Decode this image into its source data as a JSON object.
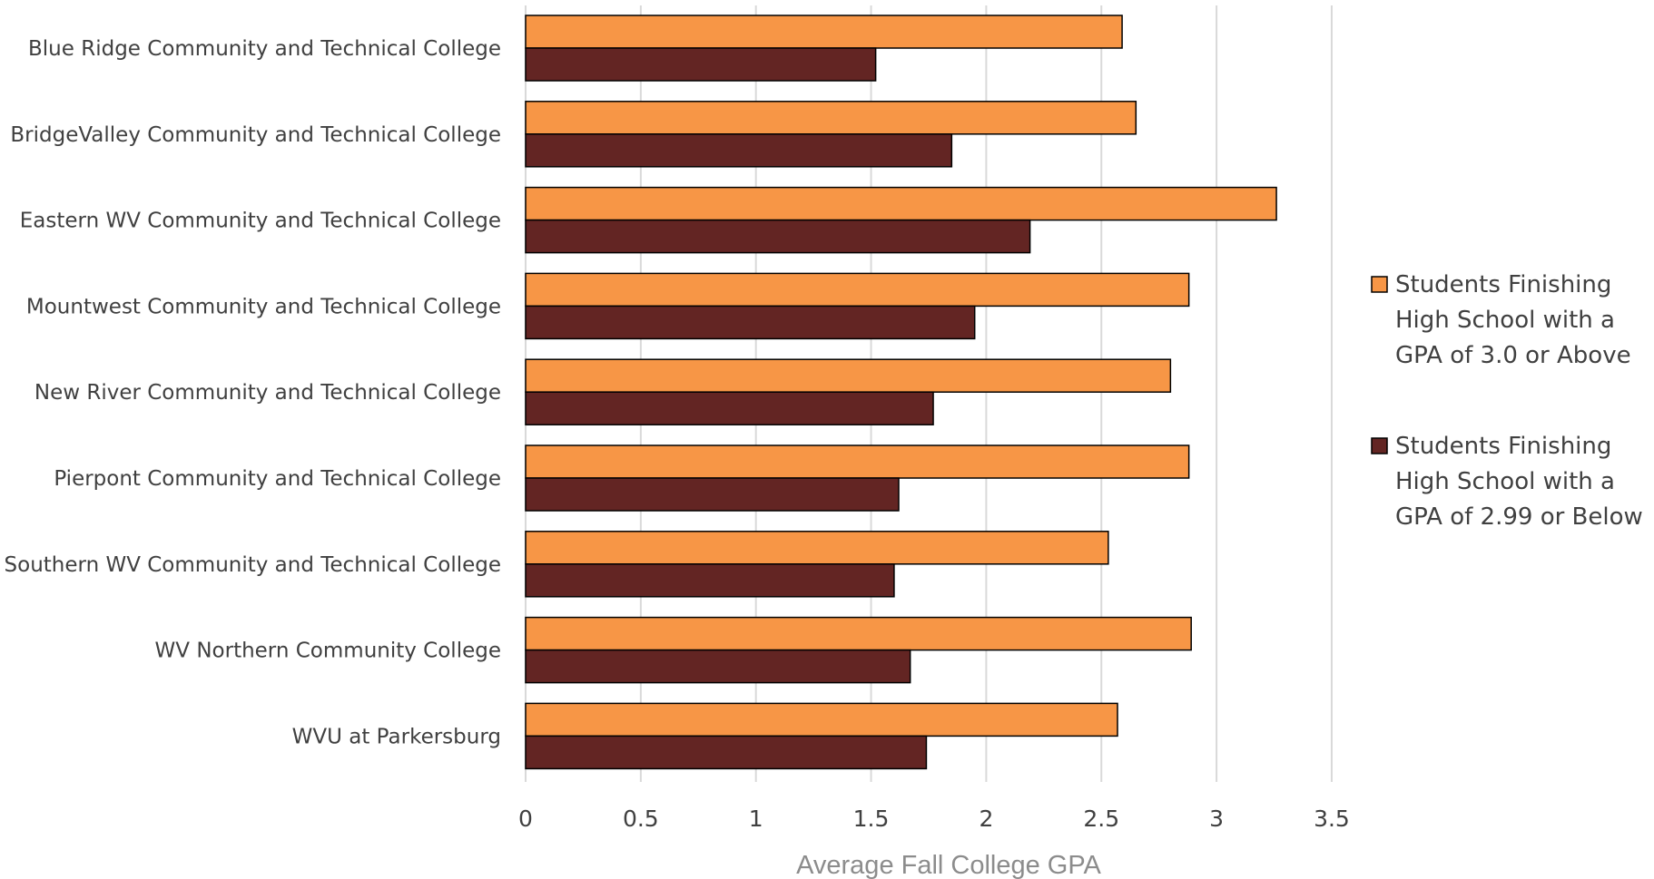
{
  "chart_data": {
    "type": "bar",
    "orientation": "horizontal",
    "title": "",
    "xlabel": "Average Fall College GPA",
    "ylabel": "",
    "xlim": [
      0,
      3.5
    ],
    "x_ticks": [
      "0",
      "0.5",
      "1",
      "1.5",
      "2",
      "2.5",
      "3",
      "3.5"
    ],
    "grid": true,
    "legend_position": "right",
    "categories": [
      "Blue Ridge Community and Technical College",
      "BridgeValley Community and Technical College",
      "Eastern WV Community and Technical College",
      "Mountwest Community and Technical College",
      "New River Community and Technical College",
      "Pierpont Community and Technical College",
      "Southern WV Community and Technical College",
      "WV Northern Community College",
      "WVU at Parkersburg"
    ],
    "series": [
      {
        "name": "Students Finishing High School with a GPA of 3.0 or Above",
        "legend_lines": [
          "Students Finishing",
          "High School with a",
          "GPA of 3.0 or Above"
        ],
        "color": "#F79646",
        "values": [
          2.59,
          2.65,
          3.26,
          2.88,
          2.8,
          2.88,
          2.53,
          2.89,
          2.57
        ]
      },
      {
        "name": "Students Finishing High School with a GPA of 2.99 or Below",
        "legend_lines": [
          "Students Finishing",
          "High School with a",
          "GPA of 2.99 or Below"
        ],
        "color": "#632523",
        "values": [
          1.52,
          1.85,
          2.19,
          1.95,
          1.77,
          1.62,
          1.6,
          1.67,
          1.74
        ]
      }
    ]
  }
}
